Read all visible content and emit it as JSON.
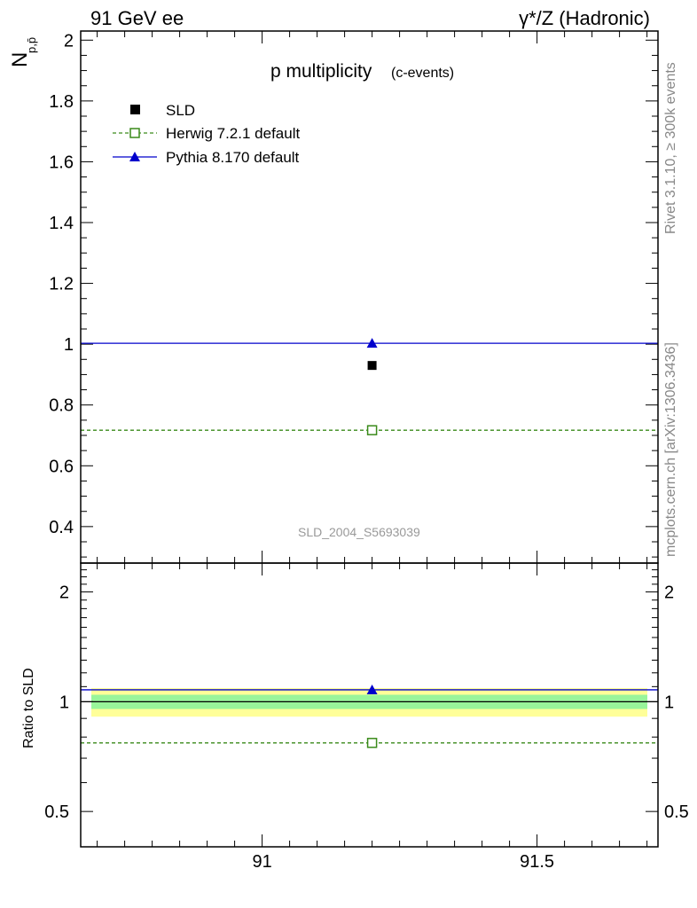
{
  "header": {
    "left": "91 GeV ee",
    "right": "γ*/Z (Hadronic)"
  },
  "side": {
    "rivet": "Rivet 3.1.10, ≥ 300k events",
    "mcplots": "mcplots.cern.ch [arXiv:1306.3436]"
  },
  "colors": {
    "data": "#000000",
    "herwig": "#3a8a1a",
    "pythia": "#0000cc",
    "band_inner": "#99f59a",
    "band_outer": "#ffff99"
  },
  "chart_data": [
    {
      "type": "scatter",
      "title_main": "p multiplicity",
      "title_sub": "(c-events)",
      "ylabel": "N",
      "ylabel_sub": "p,p̄",
      "watermark": "SLD_2004_S5693039",
      "xlim": [
        90.67,
        91.72
      ],
      "ylim": [
        0.28,
        2.03
      ],
      "x_ticks": [
        91,
        91.5
      ],
      "y_ticks": [
        {
          "v": 0.4,
          "label": "0.4"
        },
        {
          "v": 0.6,
          "label": "0.6"
        },
        {
          "v": 0.8,
          "label": "0.8"
        },
        {
          "v": 1.0,
          "label": "1"
        },
        {
          "v": 1.2,
          "label": "1.2"
        },
        {
          "v": 1.4,
          "label": "1.4"
        },
        {
          "v": 1.6,
          "label": "1.6"
        },
        {
          "v": 1.8,
          "label": "1.8"
        },
        {
          "v": 2.0,
          "label": "2"
        }
      ],
      "legend_position": "top-left",
      "series": [
        {
          "name": "SLD",
          "style": "data",
          "x": [
            91.2
          ],
          "y": [
            0.93
          ]
        },
        {
          "name": "Herwig 7.2.1 default",
          "style": "herwig",
          "x": [
            91.2
          ],
          "y": [
            0.717
          ]
        },
        {
          "name": "Pythia 8.170 default",
          "style": "pythia",
          "x": [
            91.2
          ],
          "y": [
            1.003
          ]
        }
      ]
    },
    {
      "type": "scatter",
      "ylabel": "Ratio to SLD",
      "xlim": [
        90.67,
        91.72
      ],
      "ylim": [
        0.4,
        2.4
      ],
      "log_y": true,
      "x_ticks": [
        {
          "v": 91,
          "label": "91"
        },
        {
          "v": 91.5,
          "label": "91.5"
        }
      ],
      "y_ticks": [
        {
          "v": 0.5,
          "label": "0.5"
        },
        {
          "v": 1,
          "label": "1"
        },
        {
          "v": 2,
          "label": "2"
        }
      ],
      "bands": {
        "inner": [
          0.955,
          1.045
        ],
        "outer": [
          0.91,
          1.09
        ]
      },
      "series": [
        {
          "name": "Herwig 7.2.1 default",
          "style": "herwig",
          "x": [
            91.2
          ],
          "y": [
            0.771
          ]
        },
        {
          "name": "Pythia 8.170 default",
          "style": "pythia",
          "x": [
            91.2
          ],
          "y": [
            1.078
          ]
        }
      ]
    }
  ]
}
